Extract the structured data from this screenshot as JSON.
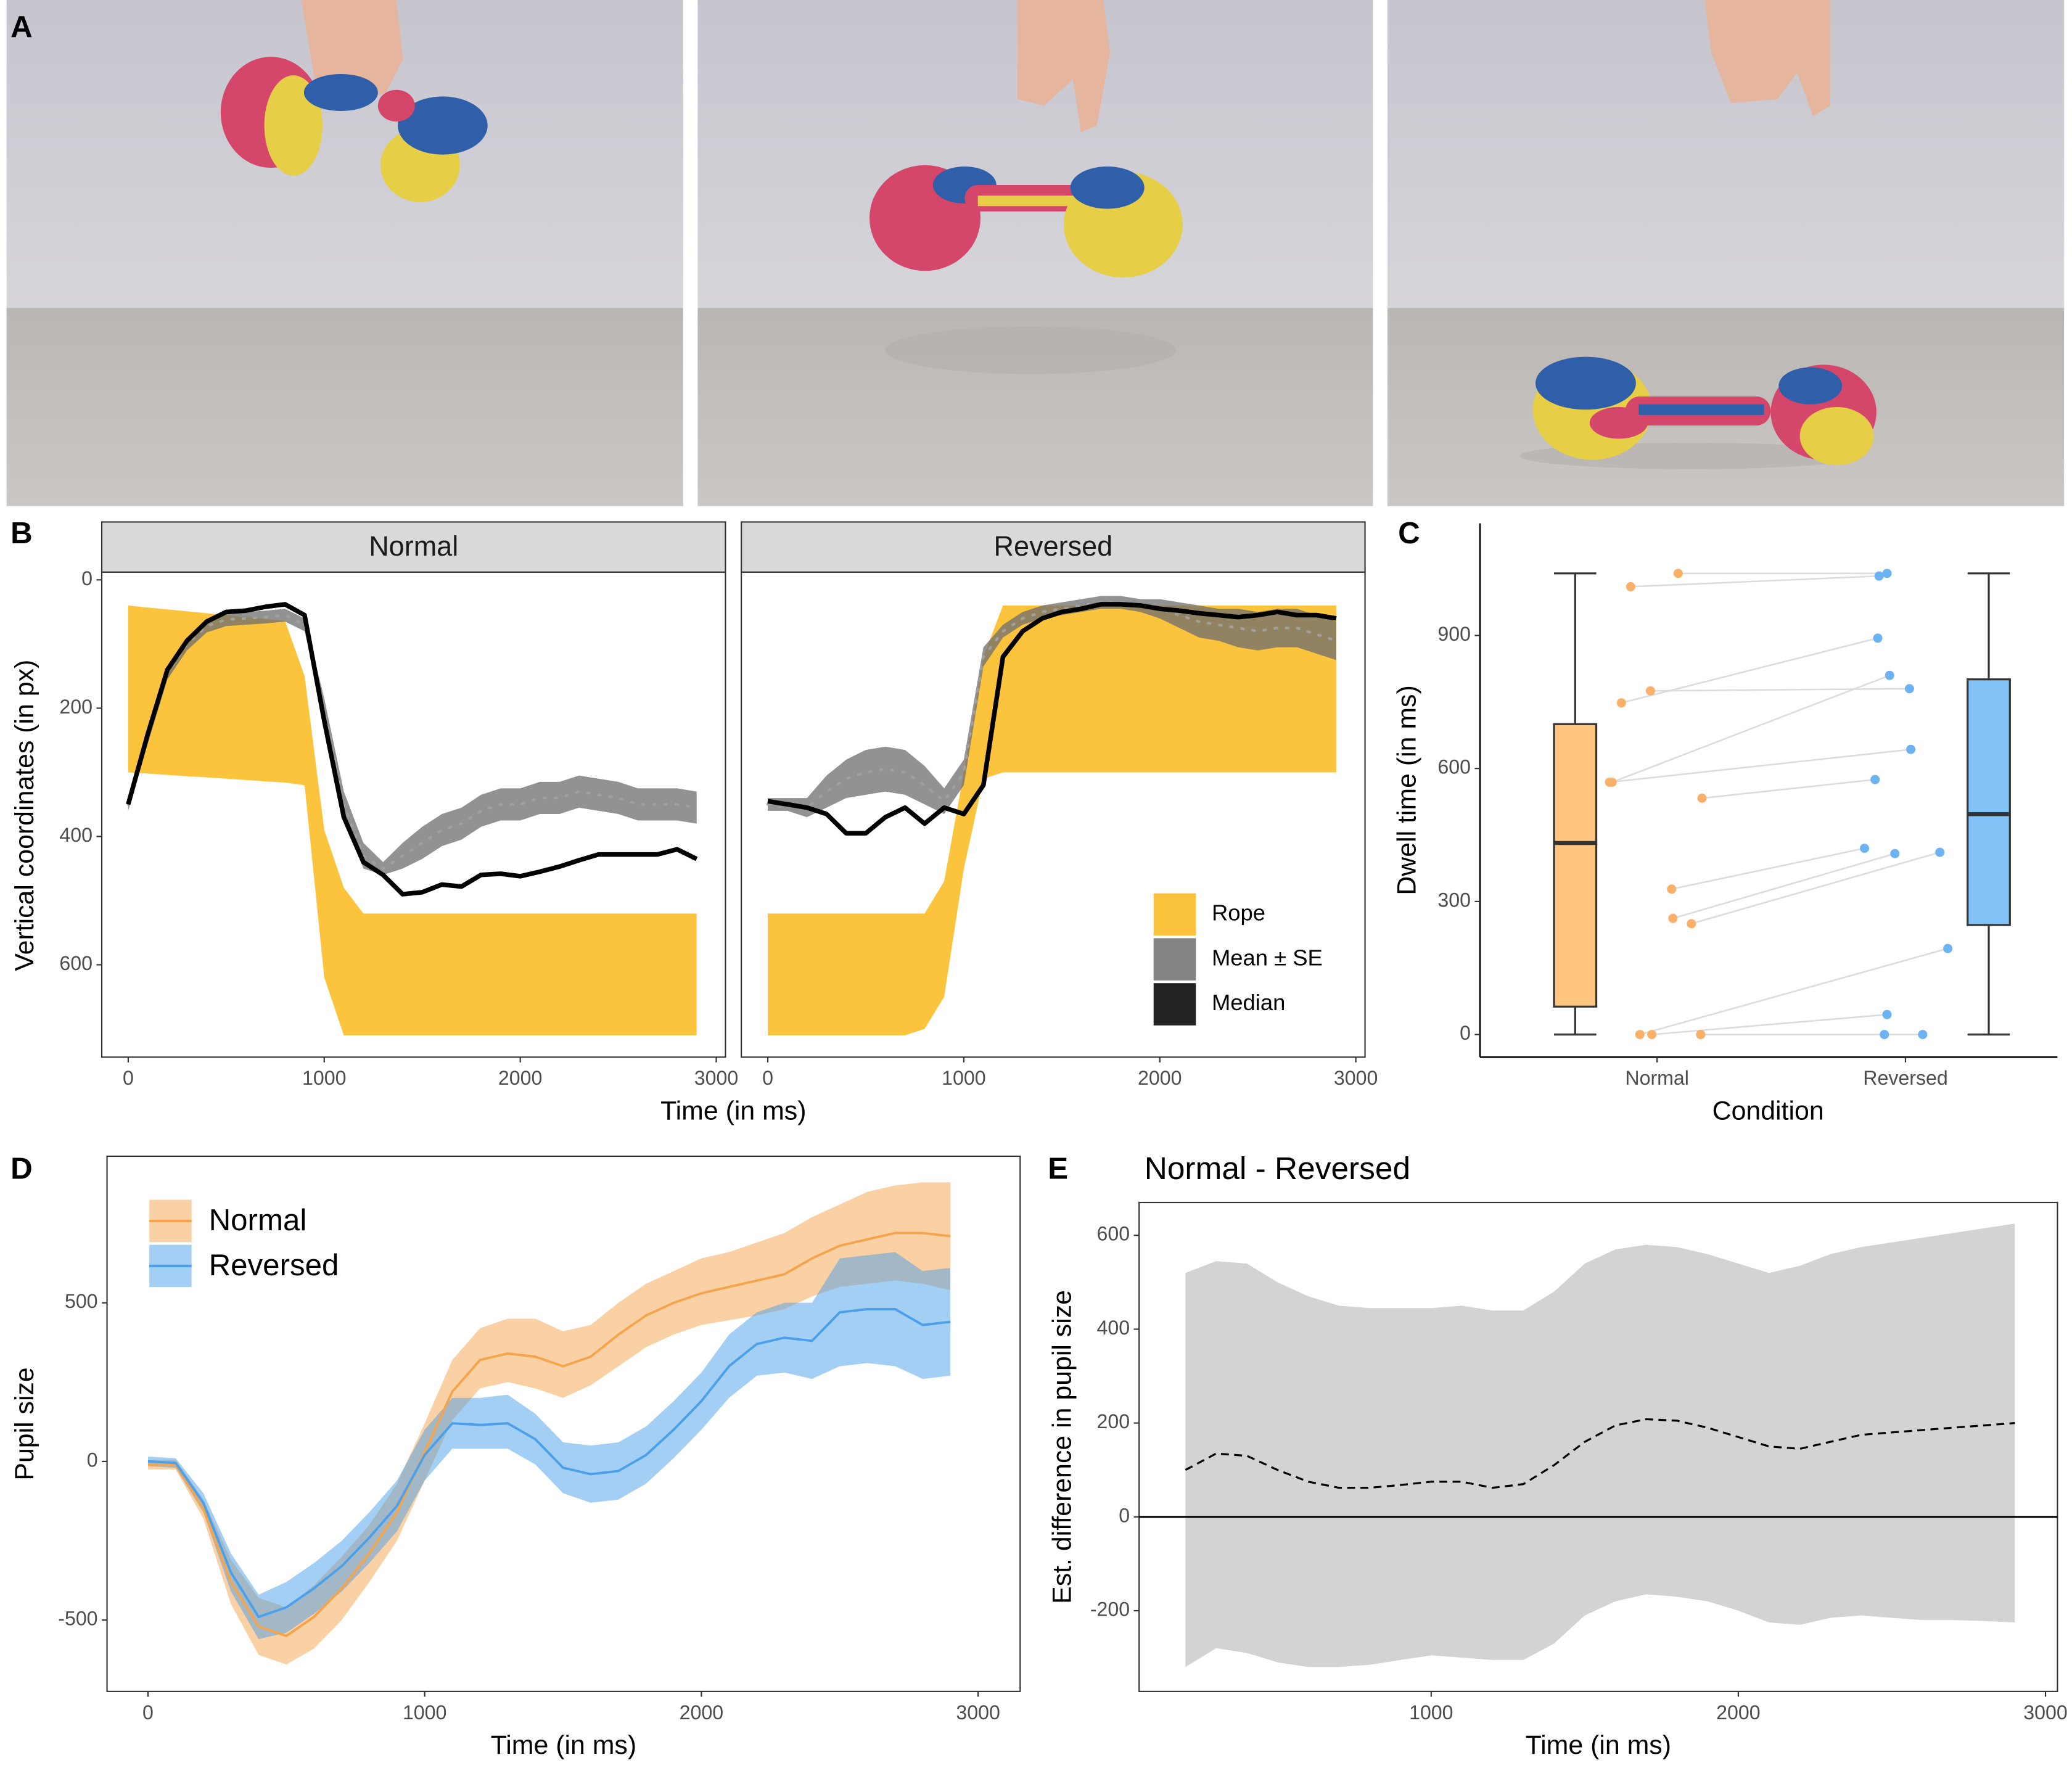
{
  "photos": {
    "panel": "A"
  },
  "chart_data": [
    {
      "type": "facet-ribbon",
      "panel": "B",
      "xlabel": "Time (in ms)",
      "ylabel": "Vertical coordinates (in px)",
      "x": [
        0,
        100,
        200,
        300,
        400,
        500,
        600,
        700,
        800,
        900,
        1000,
        1100,
        1200,
        1300,
        1400,
        1500,
        1600,
        1700,
        1800,
        1900,
        2000,
        2100,
        2200,
        2300,
        2400,
        2500,
        2600,
        2700,
        2800,
        2900
      ],
      "xlim": [
        -135,
        3047
      ],
      "xticks": [
        0,
        1000,
        2000,
        3000
      ],
      "ylim": [
        -12,
        744
      ],
      "yticks": [
        0,
        200,
        400,
        600
      ],
      "y_reversed": true,
      "legend": [
        {
          "name": "Rope",
          "color": "#fcc43d"
        },
        {
          "name": "Mean ± SE",
          "color": "#6e6e6e"
        },
        {
          "name": "Median",
          "color": "#000000"
        }
      ],
      "facets": [
        {
          "title": "Normal",
          "rope": {
            "lower": [
              40,
              43,
              46,
              49,
              52,
              55,
              58,
              61,
              64,
              150,
              390,
              480,
              520,
              520,
              520,
              520,
              520,
              520,
              520,
              520,
              520,
              520,
              520,
              520,
              520,
              520,
              520,
              520,
              520,
              520
            ],
            "upper": [
              300,
              302,
              304,
              306,
              308,
              310,
              312,
              314,
              316,
              320,
              620,
              710,
              710,
              710,
              710,
              710,
              710,
              710,
              710,
              710,
              710,
              710,
              710,
              710,
              710,
              710,
              710,
              710,
              710,
              710
            ]
          },
          "mean": {
            "values": [
              350,
              245,
              145,
              100,
              72,
              62,
              60,
              58,
              55,
              70,
              200,
              350,
              430,
              450,
              430,
              410,
              390,
              380,
              360,
              350,
              350,
              340,
              340,
              330,
              335,
              340,
              350,
              350,
              350,
              355
            ],
            "lower": [
              340,
              235,
              135,
              90,
              62,
              52,
              50,
              48,
              45,
              60,
              185,
              330,
              410,
              440,
              410,
              385,
              365,
              355,
              335,
              325,
              325,
              315,
              315,
              305,
              310,
              315,
              325,
              325,
              325,
              330
            ],
            "upper": [
              360,
              255,
              155,
              110,
              82,
              72,
              70,
              68,
              65,
              80,
              215,
              370,
              450,
              460,
              450,
              435,
              415,
              405,
              385,
              375,
              375,
              365,
              365,
              355,
              360,
              365,
              375,
              375,
              375,
              380
            ]
          },
          "median": {
            "values": [
              350,
              240,
              140,
              95,
              65,
              50,
              48,
              42,
              38,
              55,
              220,
              370,
              440,
              460,
              490,
              487,
              475,
              478,
              460,
              458,
              462,
              455,
              447,
              437,
              428,
              428,
              428,
              428,
              420,
              435
            ]
          }
        },
        {
          "title": "Reversed",
          "rope": {
            "lower": [
              520,
              520,
              520,
              520,
              520,
              520,
              520,
              520,
              520,
              470,
              300,
              120,
              40,
              40,
              40,
              40,
              40,
              40,
              40,
              40,
              40,
              40,
              40,
              40,
              40,
              40,
              40,
              40,
              40,
              40
            ],
            "upper": [
              710,
              710,
              710,
              710,
              710,
              710,
              710,
              710,
              700,
              650,
              450,
              310,
              300,
              300,
              300,
              300,
              300,
              300,
              300,
              300,
              300,
              300,
              300,
              300,
              300,
              300,
              300,
              300,
              300,
              300
            ]
          },
          "mean": {
            "values": [
              350,
              350,
              355,
              330,
              310,
              300,
              295,
              300,
              320,
              345,
              300,
              120,
              80,
              60,
              50,
              45,
              40,
              35,
              35,
              40,
              45,
              55,
              65,
              70,
              75,
              80,
              75,
              75,
              85,
              95
            ],
            "lower": [
              340,
              340,
              340,
              305,
              280,
              265,
              260,
              265,
              290,
              325,
              280,
              105,
              70,
              50,
              40,
              35,
              30,
              25,
              25,
              30,
              30,
              35,
              40,
              45,
              45,
              50,
              45,
              45,
              55,
              65
            ],
            "upper": [
              360,
              360,
              370,
              355,
              340,
              335,
              330,
              335,
              350,
              365,
              320,
              135,
              90,
              70,
              60,
              55,
              50,
              45,
              45,
              50,
              60,
              75,
              90,
              95,
              105,
              110,
              105,
              105,
              115,
              125
            ]
          },
          "median": {
            "values": [
              345,
              350,
              355,
              365,
              395,
              395,
              370,
              355,
              380,
              355,
              365,
              320,
              120,
              80,
              60,
              50,
              45,
              38,
              38,
              40,
              45,
              48,
              52,
              55,
              58,
              55,
              50,
              55,
              55,
              60
            ]
          }
        }
      ]
    },
    {
      "type": "box",
      "panel": "C",
      "xlabel": "Condition",
      "ylabel": "Dwell time (in ms)",
      "ylim": [
        -51,
        1153
      ],
      "yticks": [
        0,
        300,
        600,
        900
      ],
      "series": [
        {
          "name": "Normal",
          "color": "#ffc580",
          "point_color": "#fbb06a",
          "values": [
            1010,
            1040,
            748,
            569,
            775,
            569,
            533,
            328,
            262,
            250,
            0,
            0,
            0,
            0
          ],
          "box": {
            "min": 0,
            "q1": 63,
            "median": 432,
            "q3": 700,
            "max": 1040
          }
        },
        {
          "name": "Reversed",
          "color": "#82c2f7",
          "point_color": "#6cb3f3",
          "values": [
            1034,
            1040,
            894,
            810,
            780,
            643,
            575,
            420,
            408,
            411,
            194,
            45,
            0,
            0
          ],
          "box": {
            "min": 0,
            "q1": 247,
            "median": 497,
            "q3": 801,
            "max": 1040
          }
        }
      ]
    },
    {
      "type": "ribbon-line",
      "panel": "D",
      "xlabel": "Time (in ms)",
      "ylabel": "Pupil size",
      "x": [
        0,
        100,
        200,
        300,
        400,
        500,
        600,
        700,
        800,
        900,
        1000,
        1100,
        1200,
        1300,
        1400,
        1500,
        1600,
        1700,
        1800,
        1900,
        2000,
        2100,
        2200,
        2300,
        2400,
        2500,
        2600,
        2700,
        2800,
        2900
      ],
      "xlim": [
        -148,
        3152
      ],
      "xticks": [
        0,
        1000,
        2000,
        3000
      ],
      "ylim": [
        -725,
        962
      ],
      "yticks": [
        -500,
        0,
        500
      ],
      "series": [
        {
          "name": "Normal",
          "color": "#f5a44c",
          "values": [
            -10,
            -10,
            -150,
            -380,
            -520,
            -550,
            -490,
            -400,
            -290,
            -160,
            30,
            220,
            320,
            340,
            330,
            300,
            330,
            400,
            460,
            500,
            530,
            550,
            570,
            590,
            640,
            680,
            700,
            720,
            720,
            710
          ],
          "lower": [
            -25,
            -25,
            -180,
            -450,
            -610,
            -640,
            -590,
            -500,
            -380,
            -250,
            -60,
            130,
            230,
            250,
            230,
            200,
            240,
            300,
            360,
            400,
            430,
            445,
            460,
            480,
            520,
            550,
            560,
            570,
            560,
            540
          ],
          "upper": [
            5,
            5,
            -120,
            -310,
            -430,
            -460,
            -390,
            -300,
            -200,
            -70,
            120,
            320,
            420,
            450,
            450,
            410,
            430,
            500,
            560,
            600,
            640,
            660,
            690,
            720,
            770,
            810,
            850,
            870,
            880,
            880
          ]
        },
        {
          "name": "Reversed",
          "color": "#4aa0ea",
          "values": [
            0,
            -5,
            -130,
            -350,
            -490,
            -460,
            -400,
            -330,
            -240,
            -140,
            20,
            120,
            115,
            120,
            70,
            -20,
            -40,
            -30,
            20,
            100,
            190,
            300,
            370,
            390,
            380,
            470,
            480,
            480,
            430,
            440
          ],
          "lower": [
            -15,
            -20,
            -160,
            -410,
            -560,
            -540,
            -480,
            -410,
            -320,
            -220,
            -60,
            40,
            40,
            40,
            -10,
            -100,
            -130,
            -120,
            -70,
            10,
            100,
            200,
            270,
            280,
            260,
            300,
            310,
            300,
            260,
            270
          ],
          "upper": [
            15,
            10,
            -100,
            -290,
            -420,
            -380,
            -320,
            -250,
            -160,
            -60,
            100,
            200,
            200,
            210,
            150,
            60,
            50,
            60,
            110,
            190,
            280,
            400,
            470,
            500,
            500,
            640,
            650,
            660,
            600,
            610
          ]
        }
      ]
    },
    {
      "type": "ribbon-line",
      "panel": "E",
      "title": "Normal - Reversed",
      "xlabel": "Time (in ms)",
      "ylabel": "Est. difference in pupil size",
      "x": [
        200,
        300,
        400,
        500,
        600,
        700,
        800,
        900,
        1000,
        1100,
        1200,
        1300,
        1400,
        1500,
        1600,
        1700,
        1800,
        1900,
        2000,
        2100,
        2200,
        2300,
        2400,
        2500,
        2600,
        2700,
        2800,
        2900
      ],
      "xlim": [
        49,
        3039
      ],
      "xticks": [
        1000,
        2000,
        3000
      ],
      "ylim": [
        -372,
        670
      ],
      "yticks": [
        -200,
        0,
        200,
        400,
        600
      ],
      "hline": 0,
      "series": [
        {
          "color": "#d3d3d3",
          "values": [
            100,
            135,
            130,
            100,
            75,
            62,
            62,
            68,
            75,
            75,
            62,
            70,
            110,
            160,
            195,
            208,
            205,
            190,
            170,
            150,
            145,
            160,
            175,
            180,
            185,
            190,
            195,
            200
          ],
          "lower": [
            -320,
            -280,
            -290,
            -310,
            -320,
            -320,
            -315,
            -305,
            -295,
            -300,
            -305,
            -305,
            -270,
            -210,
            -180,
            -165,
            -170,
            -180,
            -200,
            -225,
            -230,
            -215,
            -210,
            -215,
            -220,
            -220,
            -222,
            -225
          ],
          "upper": [
            520,
            545,
            540,
            500,
            470,
            450,
            445,
            445,
            445,
            450,
            440,
            440,
            480,
            540,
            570,
            580,
            575,
            560,
            540,
            520,
            535,
            560,
            575,
            585,
            595,
            605,
            615,
            625
          ]
        }
      ]
    }
  ]
}
